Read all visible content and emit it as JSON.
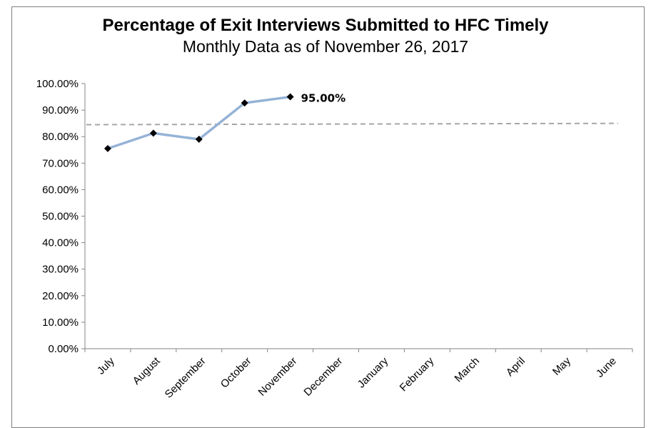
{
  "chart_data": {
    "type": "line",
    "title": "Percentage of Exit Interviews Submitted to HFC Timely",
    "subtitle": "Monthly Data as of November 26, 2017",
    "xlabel": "",
    "ylabel": "",
    "categories": [
      "July",
      "August",
      "September",
      "October",
      "November",
      "December",
      "January",
      "February",
      "March",
      "April",
      "May",
      "June"
    ],
    "series": [
      {
        "values": [
          75.5,
          81.3,
          79.0,
          92.7,
          95.0,
          null,
          null,
          null,
          null,
          null,
          null,
          null
        ],
        "color": "#95b3d7",
        "marker": "diamond",
        "marker_color": "#000000"
      }
    ],
    "reference_line": {
      "start": 84.5,
      "end": 85.0,
      "style": "dashed",
      "color": "#a6a6a6"
    },
    "data_labels": [
      {
        "index": 4,
        "text": "95.00%"
      }
    ],
    "ylim": [
      0,
      100
    ],
    "yticks": [
      "0.00%",
      "10.00%",
      "20.00%",
      "30.00%",
      "40.00%",
      "50.00%",
      "60.00%",
      "70.00%",
      "80.00%",
      "90.00%",
      "100.00%"
    ],
    "grid": false,
    "legend": "none"
  }
}
